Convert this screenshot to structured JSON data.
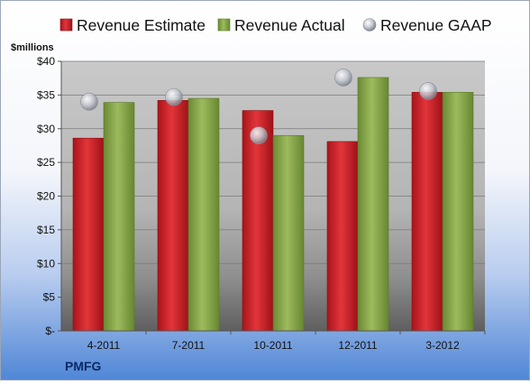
{
  "chart_data": {
    "type": "bar",
    "title": "",
    "xlabel": "",
    "ylabel": "$millions",
    "company": "PMFG",
    "categories": [
      "4-2011",
      "7-2011",
      "10-2011",
      "12-2011",
      "3-2012"
    ],
    "ylim": [
      0,
      40
    ],
    "yticks": [
      0,
      5,
      10,
      15,
      20,
      25,
      30,
      35,
      40
    ],
    "ytick_labels": [
      "$-",
      "$5",
      "$10",
      "$15",
      "$20",
      "$25",
      "$30",
      "$35",
      "$40"
    ],
    "grid": true,
    "legend_position": "top",
    "series": [
      {
        "name": "Revenue Estimate",
        "kind": "bar",
        "color": "#d9262b",
        "values": [
          28.6,
          34.2,
          32.7,
          28.1,
          35.4
        ]
      },
      {
        "name": "Revenue Actual",
        "kind": "bar",
        "color": "#8eab4f",
        "values": [
          33.9,
          34.5,
          29.0,
          37.6,
          35.4
        ]
      },
      {
        "name": "Revenue GAAP",
        "kind": "marker",
        "color": "#c8ccd4",
        "values": [
          34.0,
          34.7,
          29.0,
          37.6,
          35.6
        ]
      }
    ]
  }
}
